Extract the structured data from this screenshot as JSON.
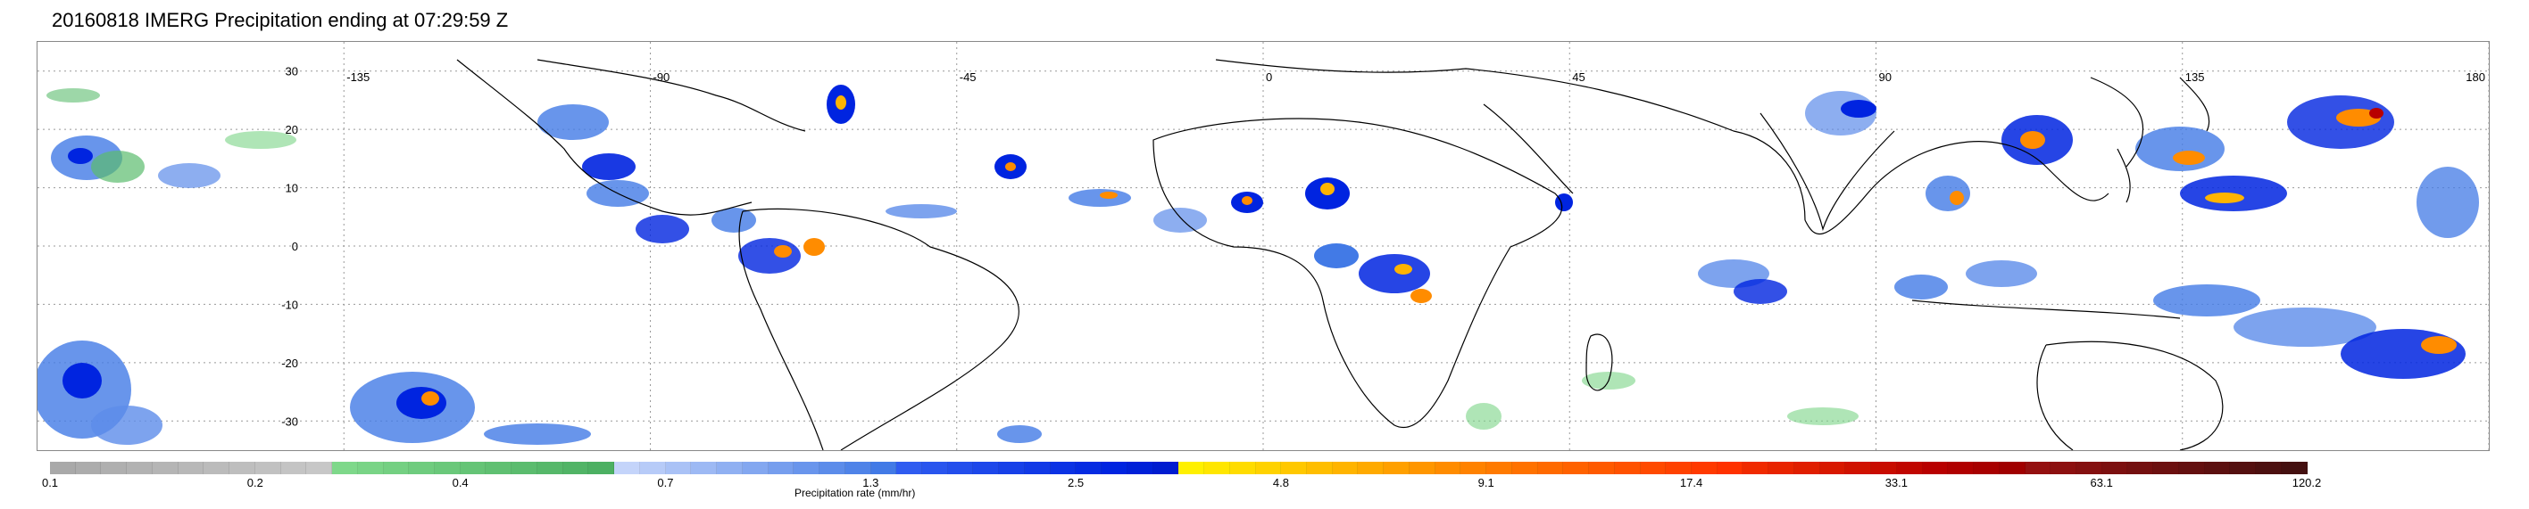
{
  "title": "20160818 IMERG Precipitation ending at 07:29:59 Z",
  "map": {
    "lon_labels": [
      "-135",
      "-90",
      "-45",
      "0",
      "45",
      "90",
      "135",
      "180"
    ],
    "lon_values": [
      -135,
      -90,
      -45,
      0,
      45,
      90,
      135,
      180
    ],
    "lat_labels": [
      "30",
      "20",
      "10",
      "0",
      "-10",
      "-20",
      "-30"
    ],
    "lat_values": [
      30,
      20,
      10,
      0,
      -10,
      -20,
      -30
    ],
    "lon_range": [
      -180,
      180
    ],
    "lat_range": [
      -35,
      35
    ],
    "gridlines": "dotted"
  },
  "colorbar": {
    "label": "Precipitation rate (mm/hr)",
    "tick_labels": [
      "0.1",
      "0.2",
      "0.4",
      "0.7",
      "1.3",
      "2.5",
      "4.8",
      "9.1",
      "17.4",
      "33.1",
      "63.1",
      "120.2"
    ],
    "colors": [
      "#a9a9a9",
      "#acacac",
      "#afafaf",
      "#b2b2b2",
      "#b5b5b5",
      "#b8b8b8",
      "#bbbbbb",
      "#bebebe",
      "#c1c1c1",
      "#c4c4c4",
      "#c7c7c7",
      "#7ed88a",
      "#79d486",
      "#74d082",
      "#6fcc7e",
      "#6ac87a",
      "#65c476",
      "#60c072",
      "#5bbc6e",
      "#56b86a",
      "#51b466",
      "#4cb062",
      "#c4d4fa",
      "#b7cbf8",
      "#aac2f6",
      "#9db9f4",
      "#90b0f2",
      "#83a7f0",
      "#769eee",
      "#6995ec",
      "#5c8cea",
      "#4f83e8",
      "#427ae6",
      "#2f5cf0",
      "#2955ee",
      "#234eec",
      "#1d47ea",
      "#1740e8",
      "#1139e6",
      "#0b32e4",
      "#052be2",
      "#0024e0",
      "#0020d8",
      "#001cd0",
      "#fff000",
      "#ffe600",
      "#ffdc00",
      "#ffd200",
      "#ffc800",
      "#ffbe00",
      "#ffb400",
      "#ffaa00",
      "#ffa000",
      "#ff9600",
      "#ff8c00",
      "#ff8200",
      "#ff7a00",
      "#ff7200",
      "#ff6a00",
      "#ff6200",
      "#ff5a00",
      "#ff5200",
      "#ff4a00",
      "#ff4200",
      "#ff3a00",
      "#ff3200",
      "#f02a00",
      "#e82400",
      "#e01e00",
      "#d81800",
      "#d01200",
      "#c80c00",
      "#c00600",
      "#b80000",
      "#b00000",
      "#a80000",
      "#a00000",
      "#941010",
      "#8c1010",
      "#841010",
      "#7c1010",
      "#741010",
      "#6c1010",
      "#641010",
      "#5c1010",
      "#541010",
      "#4c1010",
      "#441010"
    ]
  }
}
